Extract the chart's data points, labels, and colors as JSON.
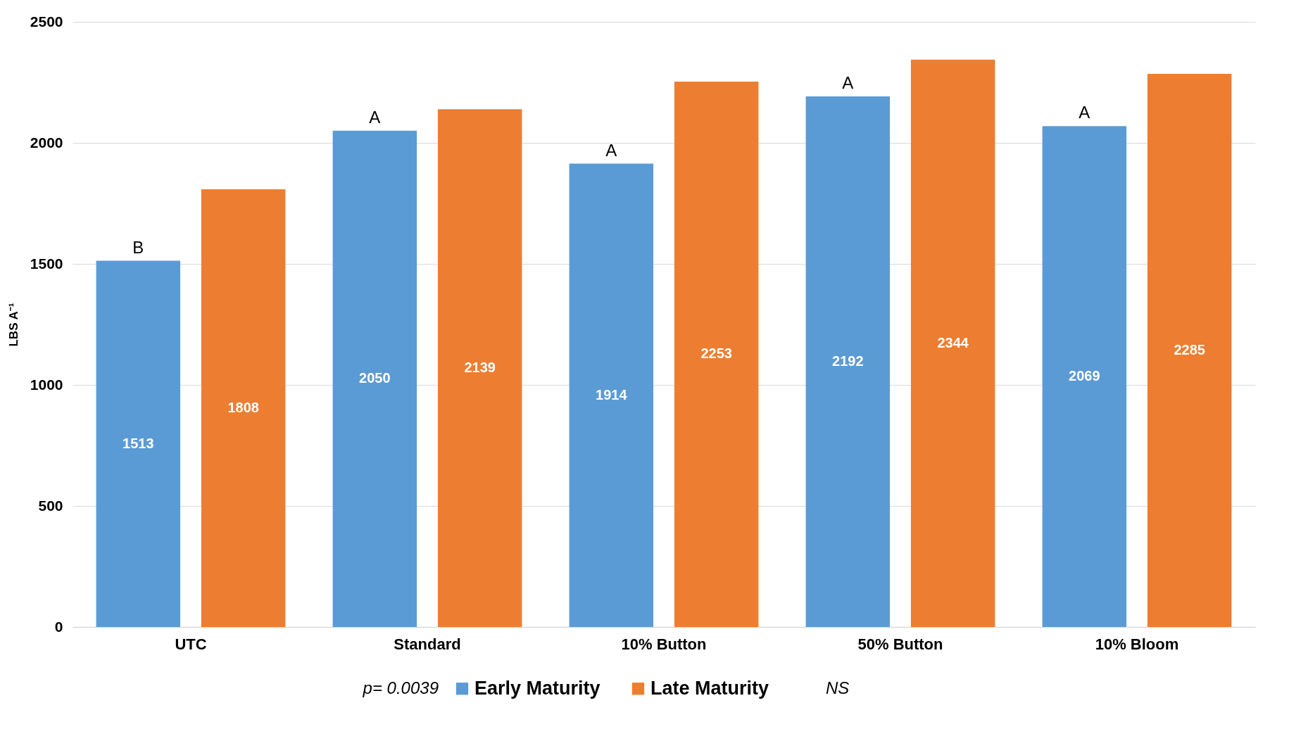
{
  "chart_data": {
    "type": "bar",
    "ylabel": "LBS A⁻¹",
    "categories": [
      "UTC",
      "Standard",
      "10% Button",
      "50% Button",
      "10% Bloom"
    ],
    "series": [
      {
        "name": "Early Maturity",
        "color": "#5b9bd5",
        "values": [
          1513,
          2050,
          1914,
          2192,
          2069
        ]
      },
      {
        "name": "Late Maturity",
        "color": "#ed7d31",
        "values": [
          1808,
          2139,
          2253,
          2344,
          2285
        ]
      }
    ],
    "ylim": [
      0,
      2500
    ],
    "yticks": [
      0,
      500,
      1000,
      1500,
      2000,
      2500
    ],
    "grid": "y",
    "legend": "bottom",
    "data_labels": true,
    "annotations": [
      "B",
      "A",
      "A",
      "A",
      "A",
      "p= 0.0039",
      "NS"
    ]
  }
}
